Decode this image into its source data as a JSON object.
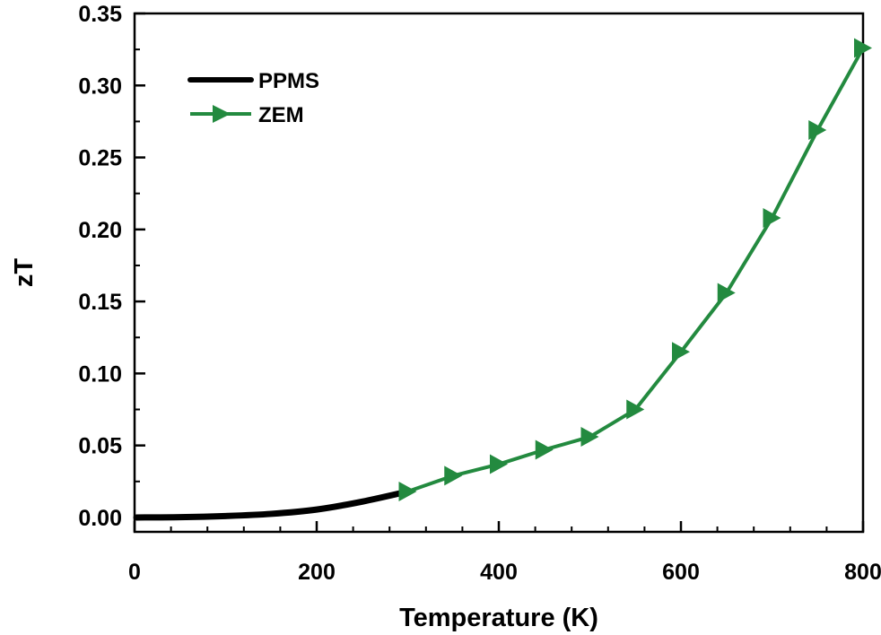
{
  "chart_data": {
    "type": "line",
    "xlabel": "Temperature (K)",
    "ylabel": "zT",
    "xlim": [
      0,
      800
    ],
    "ylim": [
      -0.01,
      0.35
    ],
    "xticks": [
      0,
      200,
      400,
      600,
      800
    ],
    "xtick_labels": [
      "0",
      "200",
      "400",
      "600",
      "800"
    ],
    "yticks": [
      0.0,
      0.05,
      0.1,
      0.15,
      0.2,
      0.25,
      0.3,
      0.35
    ],
    "ytick_labels": [
      "0.00",
      "0.05",
      "0.10",
      "0.15",
      "0.20",
      "0.25",
      "0.30",
      "0.35"
    ],
    "grid": false,
    "legend_position": "top-left",
    "series": [
      {
        "name": "PPMS",
        "color": "#000000",
        "marker": "none",
        "x": [
          2,
          50,
          100,
          150,
          200,
          250,
          300
        ],
        "y": [
          0.0,
          0.0002,
          0.001,
          0.0025,
          0.0055,
          0.011,
          0.018
        ]
      },
      {
        "name": "ZEM",
        "color": "#238a3f",
        "marker": "triangle-right",
        "x": [
          300,
          350,
          400,
          450,
          500,
          550,
          600,
          650,
          700,
          750,
          800
        ],
        "y": [
          0.018,
          0.029,
          0.037,
          0.047,
          0.056,
          0.075,
          0.115,
          0.156,
          0.208,
          0.269,
          0.326
        ]
      }
    ]
  }
}
